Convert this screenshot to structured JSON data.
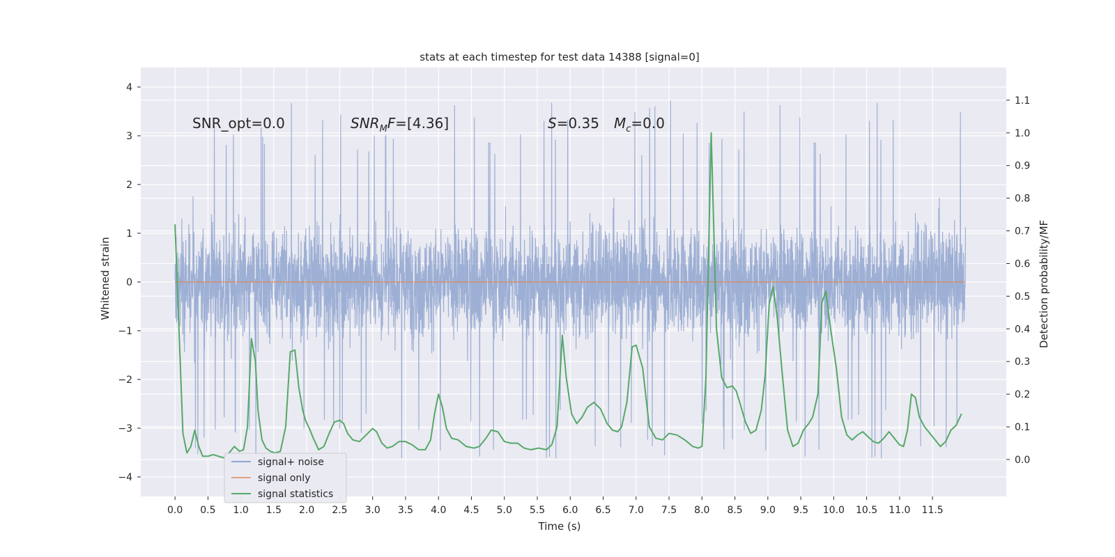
{
  "chart_data": {
    "type": "line",
    "title": "stats at each timestep for test data 14388 [signal=0]",
    "xlabel": "Time (s)",
    "ylabel": "Whitened strain",
    "y2label": "Detection probability/MF",
    "xlim": [
      -0.52,
      12.62
    ],
    "ylim": [
      -4.4,
      4.4
    ],
    "y2lim": [
      -0.113,
      1.2
    ],
    "x_ticks": [
      "0.0",
      "0.5",
      "1.0",
      "1.5",
      "2.0",
      "2.5",
      "3.0",
      "3.5",
      "4.0",
      "4.5",
      "5.0",
      "5.5",
      "6.0",
      "6.5",
      "7.0",
      "7.5",
      "8.0",
      "8.5",
      "9.0",
      "9.5",
      "10.0",
      "10.5",
      "11.0",
      "11.5"
    ],
    "y_ticks": [
      "4",
      "3",
      "2",
      "1",
      "0",
      "−1",
      "−2",
      "−3",
      "−4"
    ],
    "y2_ticks": [
      "1.1",
      "1.0",
      "0.9",
      "0.8",
      "0.7",
      "0.6",
      "0.5",
      "0.4",
      "0.3",
      "0.2",
      "0.1",
      "0.0"
    ],
    "annotations": {
      "snr_opt": "SNR_opt=0.0",
      "snr_mf_base": "SNR",
      "snr_mf_sub": "M",
      "snr_mf_tail": "F=[4.36]",
      "s_var": "S",
      "s_val": "=0.35",
      "mc_var": "M",
      "mc_sub": "c",
      "mc_val": "=0.0"
    },
    "legend_position": "lower-left",
    "series": [
      {
        "name": "signal+ noise",
        "color": "#8fa5cf",
        "axis": "left",
        "x_range": [
          0.0,
          12.0
        ],
        "envelope_upper": 2.1,
        "envelope_lower": -2.05,
        "peak_max": 3.95,
        "peak_min": -4.1
      },
      {
        "name": "signal only",
        "color": "#dd8452",
        "axis": "left",
        "x": [
          0.0,
          12.0
        ],
        "y": [
          0.0,
          0.0
        ]
      },
      {
        "name": "signal statistics",
        "color": "#55a868",
        "axis": "right",
        "x": [
          0.0,
          0.06,
          0.12,
          0.18,
          0.24,
          0.3,
          0.36,
          0.42,
          0.5,
          0.58,
          0.66,
          0.74,
          0.82,
          0.9,
          0.98,
          1.04,
          1.1,
          1.16,
          1.22,
          1.26,
          1.32,
          1.38,
          1.45,
          1.52,
          1.6,
          1.68,
          1.75,
          1.82,
          1.88,
          1.94,
          1.98,
          2.04,
          2.1,
          2.18,
          2.26,
          2.34,
          2.42,
          2.5,
          2.56,
          2.62,
          2.7,
          2.8,
          2.9,
          3.0,
          3.06,
          3.14,
          3.22,
          3.3,
          3.4,
          3.5,
          3.6,
          3.7,
          3.8,
          3.88,
          3.94,
          4.0,
          4.06,
          4.12,
          4.2,
          4.3,
          4.42,
          4.54,
          4.62,
          4.72,
          4.8,
          4.9,
          5.0,
          5.1,
          5.2,
          5.3,
          5.4,
          5.52,
          5.64,
          5.72,
          5.8,
          5.88,
          5.94,
          6.02,
          6.1,
          6.18,
          6.26,
          6.36,
          6.46,
          6.56,
          6.64,
          6.72,
          6.78,
          6.86,
          6.94,
          7.0,
          7.1,
          7.2,
          7.3,
          7.4,
          7.5,
          7.62,
          7.74,
          7.86,
          7.94,
          8.0,
          8.06,
          8.14,
          8.22,
          8.3,
          8.38,
          8.46,
          8.52,
          8.58,
          8.66,
          8.74,
          8.82,
          8.9,
          8.96,
          9.02,
          9.08,
          9.14,
          9.22,
          9.3,
          9.38,
          9.46,
          9.54,
          9.62,
          9.68,
          9.76,
          9.82,
          9.88,
          9.96,
          10.04,
          10.12,
          10.2,
          10.28,
          10.36,
          10.44,
          10.52,
          10.6,
          10.68,
          10.76,
          10.84,
          10.92,
          11.0,
          11.06,
          11.12,
          11.18,
          11.24,
          11.3,
          11.38,
          11.46,
          11.54,
          11.62,
          11.7,
          11.78,
          11.86,
          11.94
        ],
        "y": [
          0.72,
          0.4,
          0.08,
          0.02,
          0.04,
          0.09,
          0.04,
          0.01,
          0.01,
          0.015,
          0.01,
          0.005,
          0.02,
          0.04,
          0.025,
          0.03,
          0.1,
          0.37,
          0.3,
          0.15,
          0.06,
          0.035,
          0.025,
          0.02,
          0.025,
          0.1,
          0.33,
          0.335,
          0.22,
          0.15,
          0.12,
          0.095,
          0.065,
          0.03,
          0.04,
          0.08,
          0.115,
          0.12,
          0.11,
          0.08,
          0.06,
          0.055,
          0.075,
          0.095,
          0.085,
          0.05,
          0.035,
          0.04,
          0.055,
          0.055,
          0.045,
          0.03,
          0.03,
          0.06,
          0.14,
          0.2,
          0.16,
          0.095,
          0.065,
          0.06,
          0.04,
          0.035,
          0.04,
          0.065,
          0.09,
          0.085,
          0.055,
          0.05,
          0.05,
          0.035,
          0.03,
          0.035,
          0.03,
          0.045,
          0.1,
          0.38,
          0.25,
          0.14,
          0.11,
          0.13,
          0.16,
          0.175,
          0.155,
          0.11,
          0.09,
          0.085,
          0.1,
          0.175,
          0.345,
          0.35,
          0.28,
          0.1,
          0.065,
          0.06,
          0.08,
          0.075,
          0.06,
          0.04,
          0.035,
          0.04,
          0.25,
          1.0,
          0.4,
          0.25,
          0.22,
          0.225,
          0.21,
          0.17,
          0.115,
          0.08,
          0.09,
          0.15,
          0.26,
          0.475,
          0.53,
          0.44,
          0.26,
          0.09,
          0.04,
          0.05,
          0.09,
          0.11,
          0.13,
          0.2,
          0.48,
          0.515,
          0.39,
          0.28,
          0.13,
          0.075,
          0.06,
          0.075,
          0.085,
          0.07,
          0.055,
          0.05,
          0.065,
          0.085,
          0.065,
          0.045,
          0.04,
          0.09,
          0.2,
          0.19,
          0.13,
          0.1,
          0.08,
          0.06,
          0.04,
          0.055,
          0.09,
          0.105,
          0.14
        ]
      }
    ]
  }
}
